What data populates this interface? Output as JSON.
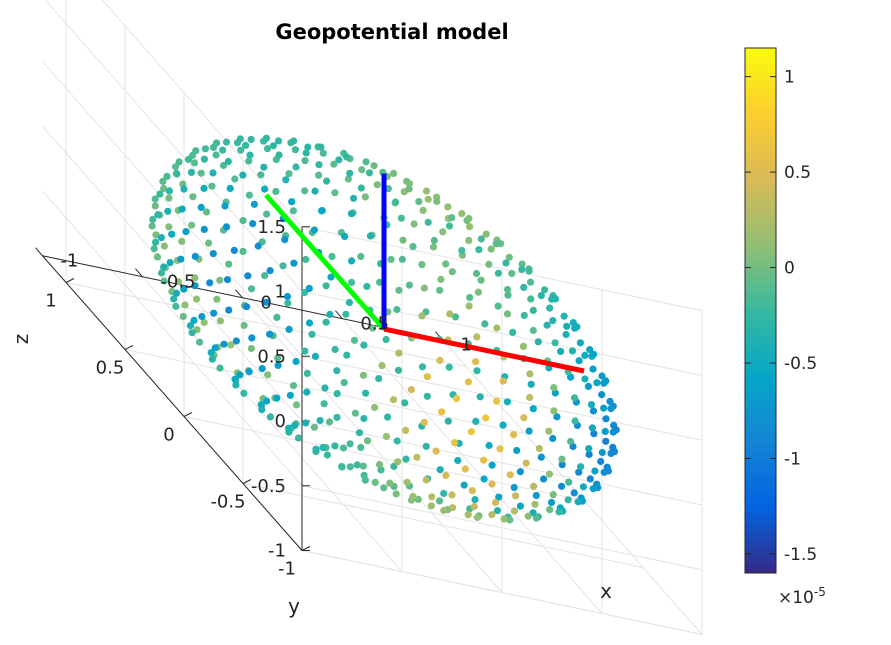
{
  "chart_data": {
    "type": "scatter",
    "subtype": "scatter3",
    "title": "Geopotential model",
    "xlabel": "x",
    "ylabel": "y",
    "zlabel": "z",
    "xlim": [
      -1,
      1
    ],
    "ylim": [
      -1,
      1.2
    ],
    "zlim": [
      -1,
      1.5
    ],
    "x_ticks": [
      "-1",
      "-0.5",
      "0",
      "0.5",
      "1"
    ],
    "y_ticks": [
      "-1",
      "-0.5",
      "0",
      "0.5",
      "1"
    ],
    "z_ticks": [
      "-1",
      "-0.5",
      "0",
      "0.5",
      "1",
      "1.5"
    ],
    "grid": true,
    "colormap": "parula",
    "colorbar": {
      "range": [
        -1.6e-05,
        1.15e-05
      ],
      "tick_labels": [
        "1",
        "0.5",
        "0",
        "-0.5",
        "-1",
        "-1.5"
      ],
      "tick_values": [
        1,
        0.5,
        0,
        -0.5,
        -1,
        -1.5
      ],
      "exponent_label": "×10",
      "exponent_power": "-5"
    },
    "sphere_points": {
      "count": 600,
      "radius": 1,
      "color_value_range": [
        -1.6e-05,
        1.15e-05
      ]
    },
    "axes_lines": [
      {
        "color": "#ff0000",
        "from": [
          0,
          0,
          0
        ],
        "to": [
          1,
          0,
          0
        ]
      },
      {
        "color": "#00ff00",
        "from": [
          0,
          0,
          0
        ],
        "to": [
          0,
          1,
          0
        ]
      },
      {
        "color": "#0000ff",
        "from": [
          0,
          0,
          0
        ],
        "to": [
          0,
          0,
          1.2
        ]
      }
    ]
  }
}
